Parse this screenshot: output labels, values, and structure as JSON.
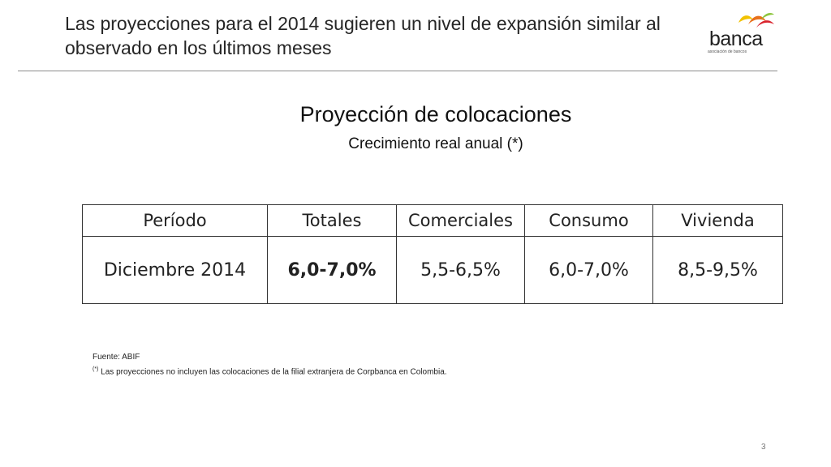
{
  "slide": {
    "title": "Las proyecciones para el 2014 sugieren un nivel de expansión similar al observado en los últimos meses",
    "heading": "Proyección de colocaciones",
    "subheading": "Crecimiento real anual (*)",
    "page_number": "3"
  },
  "logo": {
    "text": "banca",
    "subtext": "asociación de bancos",
    "colors": [
      "#f2c200",
      "#e8711c",
      "#d9232d",
      "#8dc63f"
    ]
  },
  "table": {
    "headers": [
      "Período",
      "Totales",
      "Comerciales",
      "Consumo",
      "Vivienda"
    ],
    "row": [
      "Diciembre 2014",
      "6,0-7,0%",
      "5,5-6,5%",
      "6,0-7,0%",
      "8,5-9,5%"
    ]
  },
  "footnotes": {
    "source": "Fuente: ABIF",
    "marker": "(*)",
    "note": "Las proyecciones no incluyen las colocaciones de la filial extranjera de Corpbanca en Colombia."
  }
}
